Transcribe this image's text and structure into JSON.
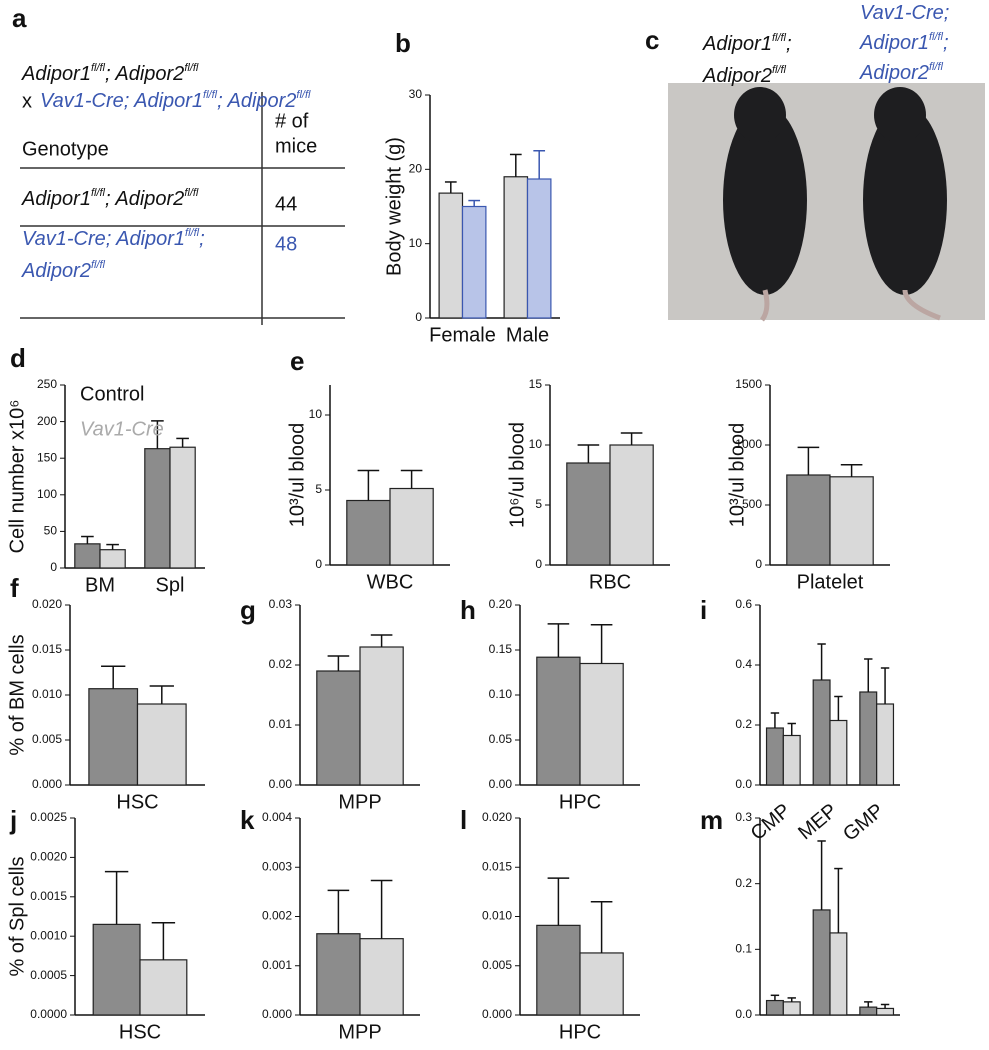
{
  "figure_a": {
    "panel": "a",
    "cross_line1": [
      "Adipor1",
      "fl/fl",
      "; Adipor2",
      "fl/fl"
    ],
    "cross_x": "x",
    "cross_line2": [
      "Vav1-Cre; Adipor1",
      "fl/fl",
      "; Adipor2",
      "fl/fl"
    ],
    "table": {
      "header": [
        "Genotype",
        [
          "# of",
          "mice"
        ]
      ],
      "rows": [
        [
          [
            "Adipor1",
            "fl/fl",
            "; Adipor2",
            "fl/fl"
          ],
          "44"
        ],
        [
          [
            [
              "Vav1-Cre; Adipor1",
              "fl/fl",
              ";"
            ],
            [
              "Adipor2",
              "fl/fl"
            ]
          ],
          "48"
        ]
      ]
    }
  },
  "figure_c": {
    "panel": "c",
    "label_control": [
      [
        "Adipor1",
        "fl/fl",
        ";"
      ],
      [
        "Adipor2",
        "fl/fl"
      ]
    ],
    "label_vav1": [
      [
        "Vav1-Cre;"
      ],
      [
        "Adipor1",
        "fl/fl",
        ";"
      ],
      [
        "Adipor2",
        "fl/fl"
      ]
    ]
  },
  "chart_data": [
    {
      "type": "bar",
      "panel": "b",
      "ylabel": "Body weight (g)",
      "categories": [
        "Female",
        "Male"
      ],
      "ylim": [
        0,
        30
      ],
      "yticks": [
        0,
        10,
        20,
        30
      ],
      "series": [
        {
          "color": "#d9d9d9",
          "values": [
            16.8,
            19
          ],
          "errors": [
            1.5,
            3
          ]
        },
        {
          "color": "#b8c4e8",
          "stroke": "#3a57b0",
          "values": [
            15,
            18.7
          ],
          "errors": [
            0.8,
            3.8
          ]
        }
      ]
    },
    {
      "type": "bar",
      "panel": "d",
      "ylabel": "Cell number x10⁶",
      "categories": [
        "BM",
        "Spl"
      ],
      "ylim": [
        0,
        250
      ],
      "yticks": [
        0,
        50,
        100,
        150,
        200,
        250
      ],
      "series": [
        {
          "name": "Control",
          "color": "#8c8c8c",
          "values": [
            33,
            163
          ],
          "errors": [
            10,
            38
          ]
        },
        {
          "name": "Vav1-Cre",
          "color": "#d9d9d9",
          "values": [
            25,
            165
          ],
          "errors": [
            7,
            12
          ]
        }
      ]
    },
    {
      "type": "bar",
      "panel": "e",
      "ylabel": "10³/ul blood",
      "categories": [
        "WBC"
      ],
      "ylim": [
        0,
        12
      ],
      "yticks": [
        0,
        5,
        10
      ],
      "series": [
        {
          "color": "#8c8c8c",
          "values": [
            4.3
          ],
          "errors": [
            2
          ]
        },
        {
          "color": "#d9d9d9",
          "values": [
            5.1
          ],
          "errors": [
            1.2
          ]
        }
      ]
    },
    {
      "type": "bar",
      "ylabel": "10⁶/ul blood",
      "categories": [
        "RBC"
      ],
      "ylim": [
        0,
        15
      ],
      "yticks": [
        0,
        5,
        10,
        15
      ],
      "series": [
        {
          "color": "#8c8c8c",
          "values": [
            8.5
          ],
          "errors": [
            1.5
          ]
        },
        {
          "color": "#d9d9d9",
          "values": [
            10
          ],
          "errors": [
            1
          ]
        }
      ]
    },
    {
      "type": "bar",
      "ylabel": "10³/ul blood",
      "categories": [
        "Platelet"
      ],
      "ylim": [
        0,
        1500
      ],
      "yticks": [
        0,
        500,
        1000,
        1500
      ],
      "series": [
        {
          "color": "#8c8c8c",
          "values": [
            750
          ],
          "errors": [
            230
          ]
        },
        {
          "color": "#d9d9d9",
          "values": [
            735
          ],
          "errors": [
            100
          ]
        }
      ]
    },
    {
      "type": "bar",
      "panel": "f",
      "ylabel": "% of BM cells",
      "categories": [
        "HSC"
      ],
      "ylim": [
        0,
        0.02
      ],
      "yticks": [
        {
          "value": 0,
          "label": "0.000"
        },
        0.005,
        {
          "value": 0.01,
          "label": "0.010"
        },
        0.015,
        {
          "value": 0.02,
          "label": "0.020"
        }
      ],
      "series": [
        {
          "color": "#8c8c8c",
          "values": [
            0.0107
          ],
          "errors": [
            0.0025
          ]
        },
        {
          "color": "#d9d9d9",
          "values": [
            0.009
          ],
          "errors": [
            0.002
          ]
        }
      ]
    },
    {
      "type": "bar",
      "panel": "g",
      "categories": [
        "MPP"
      ],
      "ylim": [
        0,
        0.03
      ],
      "yticks": [
        {
          "value": 0,
          "label": "0.00"
        },
        0.01,
        0.02,
        0.03
      ],
      "series": [
        {
          "color": "#8c8c8c",
          "values": [
            0.019
          ],
          "errors": [
            0.0025
          ]
        },
        {
          "color": "#d9d9d9",
          "values": [
            0.023
          ],
          "errors": [
            0.002
          ]
        }
      ]
    },
    {
      "type": "bar",
      "panel": "h",
      "categories": [
        "HPC"
      ],
      "ylim": [
        0,
        0.2
      ],
      "yticks": [
        {
          "value": 0,
          "label": "0.00"
        },
        0.05,
        {
          "value": 0.1,
          "label": "0.10"
        },
        0.15,
        {
          "value": 0.2,
          "label": "0.20"
        }
      ],
      "series": [
        {
          "color": "#8c8c8c",
          "values": [
            0.142
          ],
          "errors": [
            0.037
          ]
        },
        {
          "color": "#d9d9d9",
          "values": [
            0.135
          ],
          "errors": [
            0.043
          ]
        }
      ]
    },
    {
      "type": "bar",
      "panel": "i",
      "categories": [
        "CMP",
        "MEP",
        "GMP"
      ],
      "ylim": [
        0,
        0.6
      ],
      "yticks": [
        {
          "value": 0,
          "label": "0.0"
        },
        0.2,
        0.4,
        0.6
      ],
      "series": [
        {
          "color": "#8c8c8c",
          "values": [
            0.19,
            0.35,
            0.31
          ],
          "errors": [
            0.05,
            0.12,
            0.11
          ]
        },
        {
          "color": "#d9d9d9",
          "values": [
            0.165,
            0.215,
            0.27
          ],
          "errors": [
            0.04,
            0.08,
            0.12
          ]
        }
      ]
    },
    {
      "type": "bar",
      "panel": "j",
      "ylabel": "% of Spl cells",
      "categories": [
        "HSC"
      ],
      "ylim": [
        0,
        0.0025
      ],
      "yticks": [
        {
          "value": 0,
          "label": "0.0000"
        },
        0.0005,
        {
          "value": 0.001,
          "label": "0.0010"
        },
        0.0015,
        {
          "value": 0.002,
          "label": "0.0020"
        },
        0.0025
      ],
      "series": [
        {
          "color": "#8c8c8c",
          "values": [
            0.00115
          ],
          "errors": [
            0.00067
          ]
        },
        {
          "color": "#d9d9d9",
          "values": [
            0.0007
          ],
          "errors": [
            0.00047
          ]
        }
      ]
    },
    {
      "type": "bar",
      "panel": "k",
      "categories": [
        "MPP"
      ],
      "ylim": [
        0,
        0.004
      ],
      "yticks": [
        {
          "value": 0,
          "label": "0.000"
        },
        0.001,
        0.002,
        0.003,
        0.004
      ],
      "series": [
        {
          "color": "#8c8c8c",
          "values": [
            0.00165
          ],
          "errors": [
            0.00088
          ]
        },
        {
          "color": "#d9d9d9",
          "values": [
            0.00155
          ],
          "errors": [
            0.00118
          ]
        }
      ]
    },
    {
      "type": "bar",
      "panel": "l",
      "categories": [
        "HPC"
      ],
      "ylim": [
        0,
        0.02
      ],
      "yticks": [
        {
          "value": 0,
          "label": "0.000"
        },
        0.005,
        {
          "value": 0.01,
          "label": "0.010"
        },
        0.015,
        {
          "value": 0.02,
          "label": "0.020"
        }
      ],
      "series": [
        {
          "color": "#8c8c8c",
          "values": [
            0.0091
          ],
          "errors": [
            0.0048
          ]
        },
        {
          "color": "#d9d9d9",
          "values": [
            0.0063
          ],
          "errors": [
            0.0052
          ]
        }
      ]
    },
    {
      "type": "bar",
      "panel": "m",
      "categories": [
        null,
        null,
        null
      ],
      "ylim": [
        0,
        0.3
      ],
      "yticks": [
        {
          "value": 0,
          "label": "0.0"
        },
        0.1,
        0.2,
        0.3
      ],
      "series": [
        {
          "color": "#8c8c8c",
          "values": [
            0.022,
            0.16,
            0.012
          ],
          "errors": [
            0.008,
            0.105,
            0.008
          ]
        },
        {
          "color": "#d9d9d9",
          "values": [
            0.02,
            0.125,
            0.01
          ],
          "errors": [
            0.006,
            0.098,
            0.006
          ]
        }
      ]
    }
  ]
}
